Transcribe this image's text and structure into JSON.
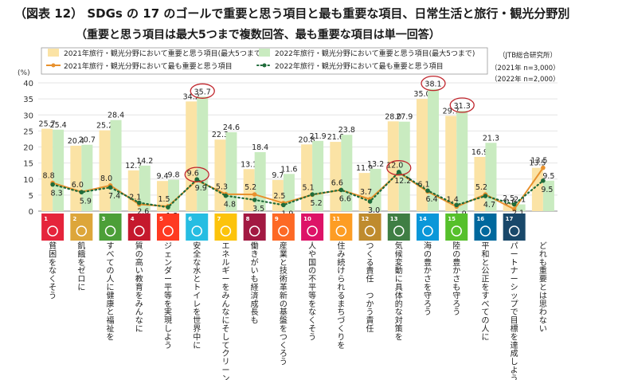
{
  "title": "（図表 12） SDGs の 17 のゴールで重要と思う項目と最も重要な項目、日常生活と旅行・観光分野別",
  "subtitle": "（重要と思う項目は最大5つまで複数回答、最も重要な項目は単一回答）",
  "source": "（JTB総合研究所）",
  "sample_notes": [
    "（2021年 n=3,000）",
    "（2022年 n=2,000）"
  ],
  "colors": {
    "bar2021": "#fbe3a5",
    "bar2022": "#c9ebc0",
    "line2021": "#e8912d",
    "line2022": "#1f6b3a",
    "highlight": "#c0262d"
  },
  "chart_data": {
    "type": "bar+line",
    "y_unit": "(%)",
    "ylim": [
      0,
      40
    ],
    "yticks": [
      0,
      5,
      10,
      15,
      20,
      25,
      30,
      35,
      40
    ],
    "grid": true,
    "legend_position": "top",
    "categories": [
      "貧困をなくそう",
      "飢餓をゼロに",
      "すべての人に健康と福祉を",
      "質の高い教育をみんなに",
      "ジェンダー平等を実現しよう",
      "安全な水とトイレを世界中に",
      "エネルギーをみんなにそしてクリーンに",
      "働きがいも経済成長も",
      "産業と技術革新の基盤をつくろう",
      "人や国の不平等をなくそう",
      "住み続けられるまちづくりを",
      "つくる責任 つかう責任",
      "気候変動に具体的な対策を",
      "海の豊かさを守ろう",
      "陸の豊かさも守ろう",
      "平和と公正をすべての人に",
      "パートナーシップで目標を達成しよう",
      "どれも重要とは思わない"
    ],
    "icon_numbers": [
      "1",
      "2",
      "3",
      "4",
      "5",
      "6",
      "7",
      "8",
      "9",
      "10",
      "11",
      "12",
      "13",
      "14",
      "15",
      "16",
      "17",
      ""
    ],
    "icon_colors": [
      "#e5243b",
      "#dda63a",
      "#4c9f38",
      "#c5192d",
      "#ff3a21",
      "#26bde2",
      "#fcc30b",
      "#a21942",
      "#fd6925",
      "#dd1367",
      "#fd9d24",
      "#bf8b2e",
      "#3f7e44",
      "#0a97d9",
      "#56c02b",
      "#00689d",
      "#19486a",
      ""
    ],
    "series": [
      {
        "name": "2021年旅行・観光分野において重要と思う項目(最大5つまで)",
        "kind": "bar",
        "values": [
          25.7,
          20.4,
          25.2,
          12.7,
          9.4,
          34.2,
          22.3,
          13.1,
          9.7,
          20.8,
          21.6,
          11.9,
          28.0,
          35.0,
          29.7,
          16.9,
          2.5,
          13.5
        ]
      },
      {
        "name": "2022年旅行・観光分野において重要と思う項目(最大5つまで)",
        "kind": "bar",
        "values": [
          25.4,
          20.7,
          28.4,
          14.2,
          9.8,
          35.7,
          24.6,
          18.4,
          11.6,
          21.9,
          23.8,
          13.2,
          27.9,
          38.1,
          31.3,
          21.3,
          2.1,
          9.5
        ]
      },
      {
        "name": "2021年旅行・観光分野において最も重要と思う項目",
        "kind": "line",
        "values": [
          8.8,
          6.0,
          8.0,
          2.1,
          1.5,
          9.6,
          5.3,
          5.2,
          2.5,
          5.1,
          6.6,
          3.7,
          12.0,
          6.1,
          1.4,
          5.2,
          0.6,
          13.5
        ]
      },
      {
        "name": "2022年旅行・観光分野において最も重要と思う項目",
        "kind": "line",
        "values": [
          8.3,
          5.9,
          7.4,
          2.6,
          1.2,
          9.9,
          4.8,
          3.5,
          1.9,
          5.2,
          6.6,
          3.0,
          12.2,
          6.4,
          1.9,
          4.7,
          2.1,
          9.5
        ]
      }
    ],
    "highlighted": [
      {
        "category_index": 5,
        "value": 35.7
      },
      {
        "category_index": 13,
        "value": 38.1
      },
      {
        "category_index": 14,
        "value": 31.3
      },
      {
        "category_index": 5,
        "value": 9.9
      },
      {
        "category_index": 12,
        "value": 12.0
      }
    ]
  }
}
